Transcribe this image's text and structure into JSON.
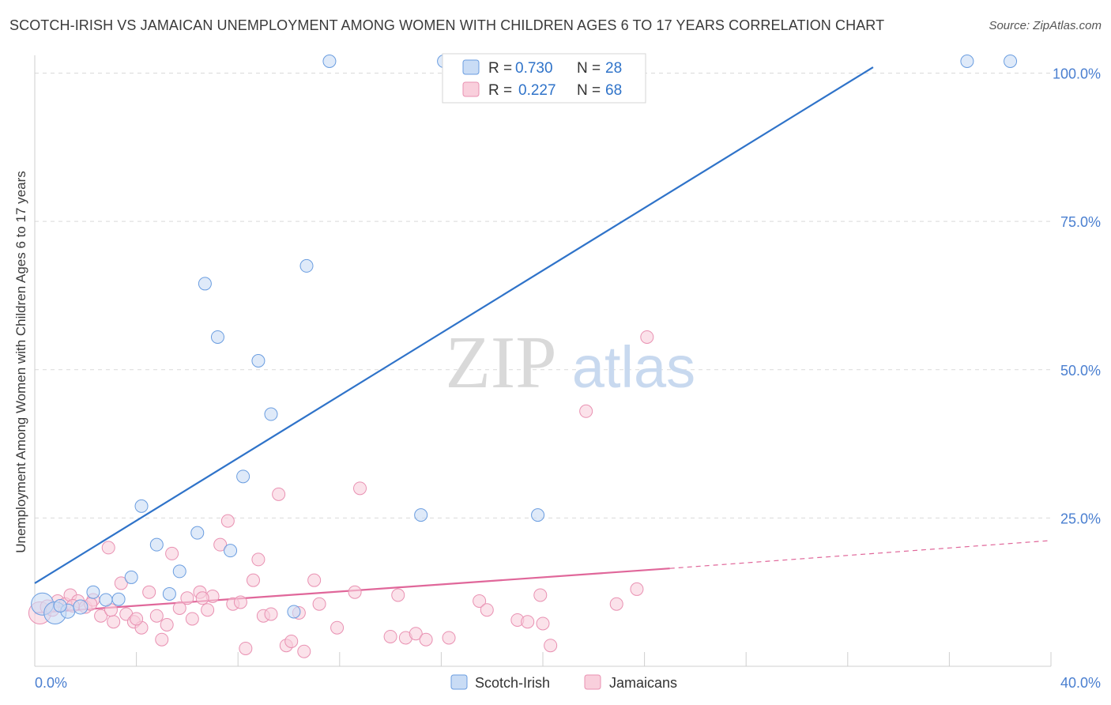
{
  "title": "SCOTCH-IRISH VS JAMAICAN UNEMPLOYMENT AMONG WOMEN WITH CHILDREN AGES 6 TO 17 YEARS CORRELATION CHART",
  "source": "Source: ZipAtlas.com",
  "watermark": {
    "zip": "ZIP",
    "atlas": "atlas"
  },
  "colors": {
    "blue": "#2f73c9",
    "blue_fill": "#c9dcf5",
    "blue_stroke": "#6a9de0",
    "pink": "#e0679a",
    "pink_fill": "#f9cfdc",
    "pink_stroke": "#e991b2",
    "axis_text": "#4a7fd0",
    "grid": "#d9d9d9"
  },
  "legend": {
    "items": [
      {
        "r_label": "R =",
        "r_value": "0.730",
        "n_label": "N =",
        "n_value": "28"
      },
      {
        "r_label": "R =",
        "r_value": "0.227",
        "n_label": "N =",
        "n_value": "68"
      }
    ]
  },
  "bottom_legend": {
    "series1": "Scotch-Irish",
    "series2": "Jamaicans"
  },
  "chart_data": {
    "type": "scatter",
    "xlabel": "",
    "ylabel": "Unemployment Among Women with Children Ages 6 to 17 years",
    "xlim": [
      0,
      40
    ],
    "ylim": [
      0,
      103
    ],
    "x_tick_labels": [
      "0.0%",
      "40.0%"
    ],
    "y_ticks": [
      25,
      50,
      75,
      100
    ],
    "y_tick_labels": [
      "25.0%",
      "50.0%",
      "75.0%",
      "100.0%"
    ],
    "series": [
      {
        "name": "Scotch-Irish",
        "r": 0.73,
        "n": 28,
        "trend": {
          "x0": 0,
          "y0": 14,
          "x1": 33,
          "y1": 101
        },
        "points": [
          {
            "x": 0.3,
            "y": 10.5,
            "s": 14
          },
          {
            "x": 0.8,
            "y": 9.0,
            "s": 14
          },
          {
            "x": 1.3,
            "y": 9.3,
            "s": 9
          },
          {
            "x": 1.8,
            "y": 10.0,
            "s": 9
          },
          {
            "x": 2.3,
            "y": 12.5,
            "s": 8
          },
          {
            "x": 2.8,
            "y": 11.2,
            "s": 8
          },
          {
            "x": 3.3,
            "y": 11.3,
            "s": 8
          },
          {
            "x": 3.8,
            "y": 15.0,
            "s": 8
          },
          {
            "x": 4.2,
            "y": 27.0,
            "s": 8
          },
          {
            "x": 4.8,
            "y": 20.5,
            "s": 8
          },
          {
            "x": 5.3,
            "y": 12.2,
            "s": 8
          },
          {
            "x": 5.7,
            "y": 16.0,
            "s": 8
          },
          {
            "x": 6.4,
            "y": 22.5,
            "s": 8
          },
          {
            "x": 6.7,
            "y": 64.5,
            "s": 8
          },
          {
            "x": 7.2,
            "y": 55.5,
            "s": 8
          },
          {
            "x": 7.7,
            "y": 19.5,
            "s": 8
          },
          {
            "x": 8.2,
            "y": 32.0,
            "s": 8
          },
          {
            "x": 8.8,
            "y": 51.5,
            "s": 8
          },
          {
            "x": 9.3,
            "y": 42.5,
            "s": 8
          },
          {
            "x": 10.2,
            "y": 9.2,
            "s": 8
          },
          {
            "x": 10.7,
            "y": 67.5,
            "s": 8
          },
          {
            "x": 11.6,
            "y": 102.0,
            "s": 8
          },
          {
            "x": 15.2,
            "y": 25.5,
            "s": 8
          },
          {
            "x": 16.1,
            "y": 102.0,
            "s": 8
          },
          {
            "x": 19.8,
            "y": 25.5,
            "s": 8
          },
          {
            "x": 36.7,
            "y": 102.0,
            "s": 8
          },
          {
            "x": 38.4,
            "y": 102.0,
            "s": 8
          },
          {
            "x": 1.0,
            "y": 10.2,
            "s": 8
          }
        ]
      },
      {
        "name": "Jamaicans",
        "r": 0.227,
        "n": 68,
        "trend": {
          "x0": 0,
          "y0": 9.0,
          "x1": 25,
          "y1": 16.5,
          "dash_x1": 40,
          "dash_y1": 21.2
        },
        "points": [
          {
            "x": 0.2,
            "y": 9.0,
            "s": 14
          },
          {
            "x": 0.5,
            "y": 10.0,
            "s": 9
          },
          {
            "x": 0.9,
            "y": 11.0,
            "s": 8
          },
          {
            "x": 1.2,
            "y": 10.5,
            "s": 8
          },
          {
            "x": 1.4,
            "y": 12.0,
            "s": 8
          },
          {
            "x": 1.7,
            "y": 11.0,
            "s": 8
          },
          {
            "x": 2.0,
            "y": 10.0,
            "s": 8
          },
          {
            "x": 2.3,
            "y": 11.2,
            "s": 8
          },
          {
            "x": 2.6,
            "y": 8.5,
            "s": 8
          },
          {
            "x": 2.9,
            "y": 20.0,
            "s": 8
          },
          {
            "x": 3.1,
            "y": 7.5,
            "s": 8
          },
          {
            "x": 3.4,
            "y": 14.0,
            "s": 8
          },
          {
            "x": 3.6,
            "y": 8.8,
            "s": 8
          },
          {
            "x": 3.9,
            "y": 7.5,
            "s": 8
          },
          {
            "x": 4.2,
            "y": 6.5,
            "s": 8
          },
          {
            "x": 4.5,
            "y": 12.5,
            "s": 8
          },
          {
            "x": 4.8,
            "y": 8.5,
            "s": 8
          },
          {
            "x": 5.0,
            "y": 4.5,
            "s": 8
          },
          {
            "x": 5.2,
            "y": 7.0,
            "s": 8
          },
          {
            "x": 5.4,
            "y": 19.0,
            "s": 8
          },
          {
            "x": 5.7,
            "y": 9.8,
            "s": 8
          },
          {
            "x": 6.0,
            "y": 11.5,
            "s": 8
          },
          {
            "x": 6.2,
            "y": 8.0,
            "s": 8
          },
          {
            "x": 6.5,
            "y": 12.5,
            "s": 8
          },
          {
            "x": 6.8,
            "y": 9.5,
            "s": 8
          },
          {
            "x": 7.0,
            "y": 11.8,
            "s": 8
          },
          {
            "x": 7.3,
            "y": 20.5,
            "s": 8
          },
          {
            "x": 7.6,
            "y": 24.5,
            "s": 8
          },
          {
            "x": 7.8,
            "y": 10.5,
            "s": 8
          },
          {
            "x": 8.1,
            "y": 10.8,
            "s": 8
          },
          {
            "x": 8.3,
            "y": 3.0,
            "s": 8
          },
          {
            "x": 8.6,
            "y": 14.5,
            "s": 8
          },
          {
            "x": 8.8,
            "y": 18.0,
            "s": 8
          },
          {
            "x": 9.0,
            "y": 8.5,
            "s": 8
          },
          {
            "x": 9.3,
            "y": 8.8,
            "s": 8
          },
          {
            "x": 9.6,
            "y": 29.0,
            "s": 8
          },
          {
            "x": 9.9,
            "y": 3.5,
            "s": 8
          },
          {
            "x": 10.1,
            "y": 4.2,
            "s": 8
          },
          {
            "x": 10.4,
            "y": 9.0,
            "s": 8
          },
          {
            "x": 10.6,
            "y": 2.5,
            "s": 8
          },
          {
            "x": 11.0,
            "y": 14.5,
            "s": 8
          },
          {
            "x": 11.2,
            "y": 10.5,
            "s": 8
          },
          {
            "x": 11.9,
            "y": 6.5,
            "s": 8
          },
          {
            "x": 12.6,
            "y": 12.5,
            "s": 8
          },
          {
            "x": 12.8,
            "y": 30.0,
            "s": 8
          },
          {
            "x": 14.0,
            "y": 5.0,
            "s": 8
          },
          {
            "x": 14.3,
            "y": 12.0,
            "s": 8
          },
          {
            "x": 14.6,
            "y": 4.8,
            "s": 8
          },
          {
            "x": 15.0,
            "y": 5.5,
            "s": 8
          },
          {
            "x": 15.4,
            "y": 4.5,
            "s": 8
          },
          {
            "x": 16.3,
            "y": 4.8,
            "s": 8
          },
          {
            "x": 17.5,
            "y": 11.0,
            "s": 8
          },
          {
            "x": 17.8,
            "y": 9.5,
            "s": 8
          },
          {
            "x": 19.0,
            "y": 7.8,
            "s": 8
          },
          {
            "x": 19.4,
            "y": 7.5,
            "s": 8
          },
          {
            "x": 19.9,
            "y": 12.0,
            "s": 8
          },
          {
            "x": 20.0,
            "y": 7.2,
            "s": 8
          },
          {
            "x": 20.3,
            "y": 3.5,
            "s": 8
          },
          {
            "x": 21.7,
            "y": 43.0,
            "s": 8
          },
          {
            "x": 22.9,
            "y": 10.5,
            "s": 8
          },
          {
            "x": 23.7,
            "y": 13.0,
            "s": 8
          },
          {
            "x": 24.1,
            "y": 55.5,
            "s": 8
          },
          {
            "x": 0.7,
            "y": 9.5,
            "s": 8
          },
          {
            "x": 1.5,
            "y": 10.2,
            "s": 8
          },
          {
            "x": 2.2,
            "y": 10.5,
            "s": 8
          },
          {
            "x": 3.0,
            "y": 9.5,
            "s": 8
          },
          {
            "x": 4.0,
            "y": 8.0,
            "s": 8
          },
          {
            "x": 6.6,
            "y": 11.5,
            "s": 8
          }
        ]
      }
    ]
  }
}
